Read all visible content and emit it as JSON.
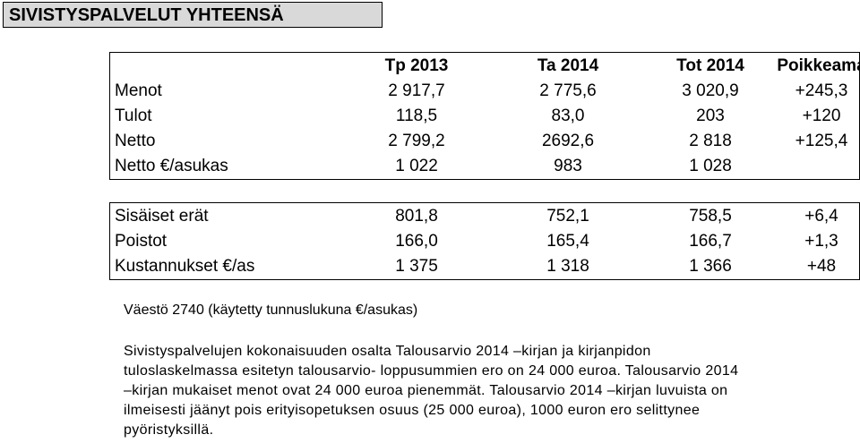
{
  "title": "SIVISTYSPALVELUT YHTEENSÄ",
  "table1": {
    "headers": [
      "Tp 2013",
      "Ta 2014",
      "Tot 2014",
      "Poikkeama"
    ],
    "rows": [
      {
        "label": "Menot",
        "values": [
          "2 917,7",
          "2 775,6",
          "3 020,9",
          "+245,3"
        ]
      },
      {
        "label": "Tulot",
        "values": [
          "118,5",
          "83,0",
          "203",
          "+120"
        ]
      },
      {
        "label": "Netto",
        "values": [
          "2 799,2",
          "2692,6",
          "2 818",
          "+125,4"
        ]
      },
      {
        "label": "Netto €/asukas",
        "values": [
          "1 022",
          "983",
          "1 028",
          ""
        ]
      }
    ]
  },
  "table2": {
    "rows": [
      {
        "label": "Sisäiset erät",
        "values": [
          "801,8",
          "752,1",
          "758,5",
          "+6,4"
        ]
      },
      {
        "label": "Poistot",
        "values": [
          "166,0",
          "165,4",
          "166,7",
          "+1,3"
        ]
      },
      {
        "label": "Kustannukset €/as",
        "values": [
          "1 375",
          "1 318",
          "1 366",
          "+48"
        ]
      }
    ]
  },
  "population_note": "Väestö 2740 (käytetty tunnuslukuna €/asukas)",
  "paragraph_lines": [
    "Sivistyspalvelujen kokonaisuuden osalta Talousarvio 2014 –kirjan ja kirjanpidon",
    "tuloslaskelmassa esitetyn talousarvio- loppusummien ero on 24 000 euroa. Talousarvio 2014",
    "–kirjan mukaiset menot ovat 24 000 euroa pienemmät. Talousarvio 2014 –kirjan luvuista on",
    "ilmeisesti jäänyt pois erityisopetuksen osuus (25 000 euroa), 1000 euron ero selittynee",
    "pyöristyksillä."
  ]
}
